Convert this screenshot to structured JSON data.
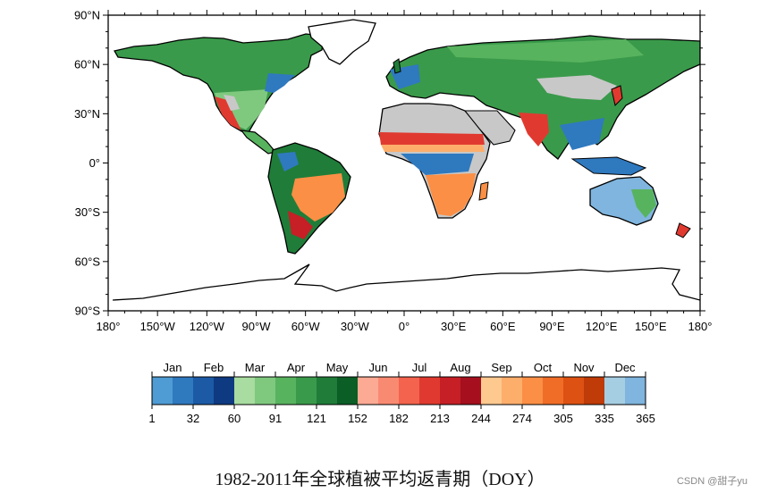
{
  "map": {
    "lat_labels": [
      "90°N",
      "60°N",
      "30°N",
      "0°",
      "30°S",
      "60°S",
      "90°S"
    ],
    "lon_labels": [
      "180°",
      "150°W",
      "120°W",
      "90°W",
      "60°W",
      "30°W",
      "0°",
      "30°E",
      "60°E",
      "90°E",
      "120°E",
      "150°E",
      "180°"
    ]
  },
  "legend": {
    "months": [
      "Jan",
      "Feb",
      "Mar",
      "Apr",
      "May",
      "Jun",
      "Jul",
      "Aug",
      "Sep",
      "Oct",
      "Nov",
      "Dec"
    ],
    "tick_labels": [
      "1",
      "32",
      "60",
      "91",
      "121",
      "152",
      "182",
      "213",
      "244",
      "274",
      "305",
      "335",
      "365"
    ],
    "colors": [
      "#4f9bd3",
      "#2f79bf",
      "#1c5aa6",
      "#0e3a82",
      "#a8dca0",
      "#7fc97f",
      "#58b35e",
      "#3a9a4b",
      "#1f7d39",
      "#0b5e26",
      "#fcaa94",
      "#f98a72",
      "#f3634d",
      "#e03a30",
      "#c61f26",
      "#a50f1e",
      "#fdc98f",
      "#fdae6b",
      "#fb8f45",
      "#f06d28",
      "#dd5213",
      "#bf3b07",
      "#a6cee3",
      "#7fb5de"
    ]
  },
  "caption": "1982-2011年全球植被平均返青期（DOY）",
  "watermark": "CSDN @甜子yu"
}
